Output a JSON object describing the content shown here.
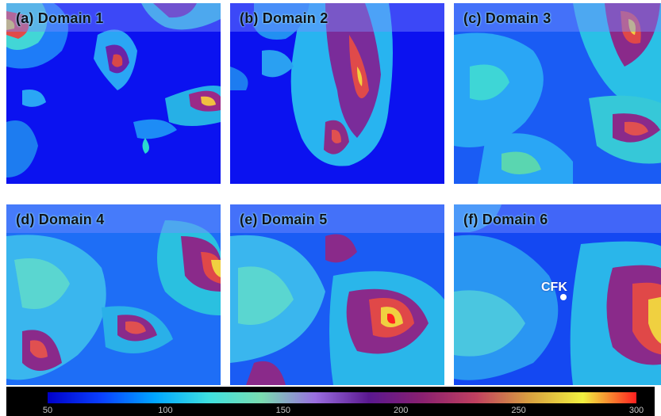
{
  "panels": [
    {
      "label": "(a) Domain 1"
    },
    {
      "label": "(b) Domain 2"
    },
    {
      "label": "(c) Domain 3"
    },
    {
      "label": "(d) Domain 4"
    },
    {
      "label": "(e) Domain 5"
    },
    {
      "label": "(f) Domain 6",
      "marker": {
        "label": "CFK"
      }
    }
  ],
  "colorbar": {
    "min": 50,
    "max": 300,
    "ticks": [
      "50",
      "100",
      "150",
      "200",
      "250",
      "300"
    ],
    "colors": [
      "#0000c8",
      "#0a40ff",
      "#00a6ff",
      "#3ee0e0",
      "#7adcb0",
      "#9a6ee0",
      "#5a1890",
      "#8a2070",
      "#c04060",
      "#d8a040",
      "#f0f040",
      "#ff2020"
    ]
  }
}
